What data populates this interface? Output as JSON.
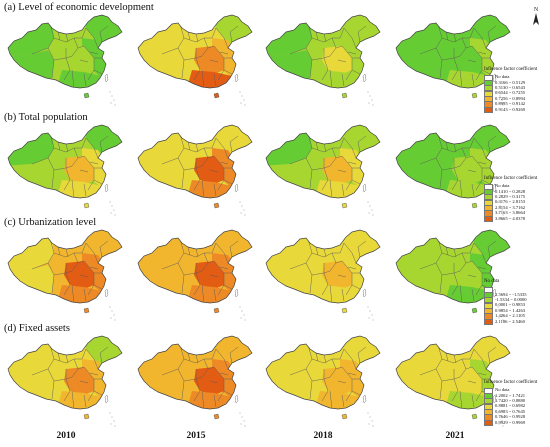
{
  "palette": [
    "#ffffff",
    "#66cc33",
    "#a8d631",
    "#e8d83a",
    "#f2b62e",
    "#ee8a25",
    "#e35c14"
  ],
  "north_label": "N",
  "panels": [
    {
      "title": "(a)   Level of economic development",
      "legend": {
        "title": "Influence factor coefficient",
        "entries": [
          "No data",
          "0.3166 ~ 0.5129",
          "0.5130 ~ 0.6543",
          "0.6544 ~ 0.7255",
          "0.7256 ~ 0.8994",
          "0.8995 ~ 0.9142",
          "0.9143 ~ 0.9269"
        ]
      },
      "maps": [
        {
          "year": "2010",
          "base": 2,
          "east": 1,
          "core": 2,
          "south": 1,
          "ne": 1,
          "northwest": 1,
          "tibet": 1
        },
        {
          "year": "2015",
          "base": 3,
          "east": 4,
          "core": 5,
          "south": 6,
          "ne": 2,
          "northwest": 3,
          "tibet": 3
        },
        {
          "year": "2018",
          "base": 2,
          "east": 2,
          "core": 3,
          "south": 2,
          "ne": 2,
          "northwest": 1,
          "tibet": 1
        },
        {
          "year": "2021",
          "base": 1,
          "east": 2,
          "core": 1,
          "south": 2,
          "ne": 1,
          "northwest": 1,
          "tibet": 1
        }
      ]
    },
    {
      "title": "(b)   Total population",
      "legend": {
        "title": "Influence factor coefficient",
        "entries": [
          "No data",
          "0.1410 ~ 0.2828",
          "0.2829 ~ 0.3175",
          "0.3176 ~ 2.8153",
          "2.8154 ~ 3.7162",
          "3.7163 ~ 3.8664",
          "3.8665 ~ 4.0378"
        ]
      },
      "maps": [
        {
          "year": "2010",
          "base": 2,
          "east": 3,
          "core": 4,
          "south": 3,
          "ne": 1,
          "northwest": 1,
          "tibet": 2
        },
        {
          "year": "2015",
          "base": 3,
          "east": 5,
          "core": 6,
          "south": 5,
          "ne": 3,
          "northwest": 3,
          "tibet": 3
        },
        {
          "year": "2018",
          "base": 2,
          "east": 3,
          "core": 4,
          "south": 3,
          "ne": 2,
          "northwest": 1,
          "tibet": 2
        },
        {
          "year": "2021",
          "base": 1,
          "east": 2,
          "core": 2,
          "south": 2,
          "ne": 1,
          "northwest": 1,
          "tibet": 1
        }
      ]
    },
    {
      "title": "(c)   Urbanization level",
      "legend": {
        "title": "No data",
        "entries": [
          "",
          "2.5694 ~ -1.5335",
          "-1.5334 ~ 0.0000",
          "0.0001 ~ 0.9853",
          "0.9854 ~ 1.4263",
          "1.4264 ~ 2.1105",
          "2.1106 ~ 2.5460"
        ]
      },
      "maps": [
        {
          "year": "2010",
          "base": 4,
          "east": 5,
          "core": 6,
          "south": 5,
          "ne": 4,
          "northwest": 3,
          "tibet": 3
        },
        {
          "year": "2015",
          "base": 4,
          "east": 5,
          "core": 6,
          "south": 5,
          "ne": 4,
          "northwest": 4,
          "tibet": 4
        },
        {
          "year": "2018",
          "base": 3,
          "east": 3,
          "core": 4,
          "south": 3,
          "ne": 3,
          "northwest": 3,
          "tibet": 3
        },
        {
          "year": "2021",
          "base": 2,
          "east": 1,
          "core": 2,
          "south": 1,
          "ne": 1,
          "northwest": 2,
          "tibet": 2
        }
      ]
    },
    {
      "title": "(d)   Fixed assets",
      "legend": {
        "title": "Influence factor coefficient",
        "entries": [
          "No data",
          "1.2002 ~ 1.7421",
          "1.7420 ~ 0.8880",
          "0.8881 ~ 0.6982",
          "0.6983 ~ 0.7645",
          "0.7646 ~ 0.9928",
          "0.9929 ~ 0.9969"
        ]
      },
      "maps": [
        {
          "year": "2010",
          "base": 3,
          "east": 4,
          "core": 5,
          "south": 4,
          "ne": 2,
          "northwest": 3,
          "tibet": 3
        },
        {
          "year": "2015",
          "base": 4,
          "east": 5,
          "core": 6,
          "south": 5,
          "ne": 4,
          "northwest": 4,
          "tibet": 4
        },
        {
          "year": "2018",
          "base": 3,
          "east": 4,
          "core": 4,
          "south": 4,
          "ne": 3,
          "northwest": 3,
          "tibet": 3
        },
        {
          "year": "2021",
          "base": 3,
          "east": 2,
          "core": 3,
          "south": 2,
          "ne": 3,
          "northwest": 3,
          "tibet": 3
        }
      ]
    }
  ],
  "years": [
    "2010",
    "2015",
    "2018",
    "2021"
  ]
}
